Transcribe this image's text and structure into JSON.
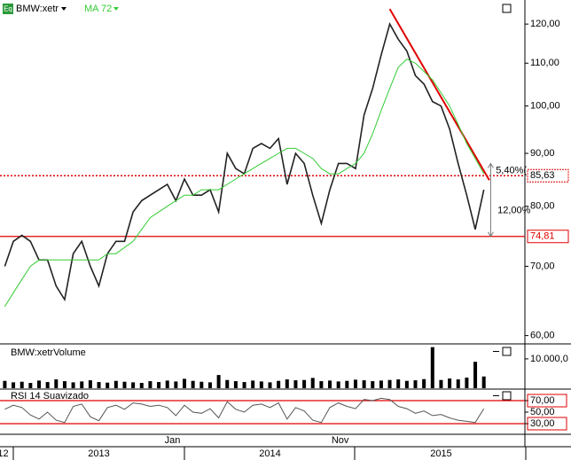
{
  "chart_data": [
    {
      "type": "line",
      "log_scale": true,
      "icon_label": "Eq",
      "x": [
        2012.95,
        2013.0,
        2013.05,
        2013.1,
        2013.15,
        2013.2,
        2013.25,
        2013.3,
        2013.35,
        2013.4,
        2013.45,
        2013.5,
        2013.55,
        2013.6,
        2013.65,
        2013.7,
        2013.75,
        2013.8,
        2013.85,
        2013.9,
        2013.95,
        2014.0,
        2014.05,
        2014.1,
        2014.15,
        2014.2,
        2014.25,
        2014.3,
        2014.35,
        2014.4,
        2014.45,
        2014.5,
        2014.55,
        2014.6,
        2014.65,
        2014.7,
        2014.75,
        2014.8,
        2014.85,
        2014.9,
        2014.95,
        2015.0,
        2015.05,
        2015.1,
        2015.15,
        2015.2,
        2015.25,
        2015.3,
        2015.35,
        2015.4,
        2015.45,
        2015.5,
        2015.55,
        2015.6,
        2015.65,
        2015.7,
        2015.75
      ],
      "xlim": [
        2012.922,
        2015.99
      ],
      "ylim": [
        58.9,
        126.6
      ],
      "yticks": [
        {
          "value": 60,
          "label": "60,00"
        },
        {
          "value": 70,
          "label": "70,00"
        },
        {
          "value": 80,
          "label": "80,00"
        },
        {
          "value": 90,
          "label": "90,00"
        },
        {
          "value": 100,
          "label": "100,00"
        },
        {
          "value": 110,
          "label": "110,00"
        },
        {
          "value": 120,
          "label": "120,00"
        }
      ],
      "series": [
        {
          "name": "BMW:xetr",
          "color": "#222222",
          "values": [
            70,
            74,
            75,
            74,
            71,
            71,
            67,
            65,
            72,
            74,
            70,
            67,
            72,
            74,
            74,
            79,
            81,
            82,
            83,
            84,
            81,
            85,
            82,
            82,
            83,
            79,
            90,
            87,
            86,
            91,
            92,
            91,
            93,
            84,
            90,
            88,
            82,
            77,
            83,
            88,
            88,
            87,
            98,
            104,
            112,
            120,
            116,
            113,
            107,
            105,
            101,
            100,
            95,
            88,
            82,
            76,
            83
          ]
        },
        {
          "name": "MA 72",
          "color": "#33cc33",
          "values": [
            64,
            66,
            68,
            70,
            71,
            71,
            71,
            71,
            71,
            71,
            71,
            71,
            72,
            72,
            73,
            74,
            76,
            78,
            79,
            80,
            81,
            82,
            82,
            83,
            83,
            83,
            84,
            85,
            86,
            87,
            88,
            89,
            90,
            91,
            91,
            90,
            89,
            87,
            86,
            86,
            87,
            88,
            90,
            94,
            99,
            104,
            109,
            111,
            110,
            108,
            106,
            103,
            100,
            96,
            92,
            89,
            86
          ]
        }
      ],
      "levels": [
        {
          "value": 74.81,
          "label": "74,81",
          "style": "solid",
          "color": "#e00000"
        },
        {
          "value": 85.63,
          "label": "85,63",
          "style": "dotted",
          "color": "#e00000"
        }
      ],
      "trendline": {
        "x": [
          2015.2,
          2015.782
        ],
        "y": [
          124.1,
          84.8
        ],
        "color": "#e00000"
      },
      "arrow": {
        "x": 2015.79,
        "y": [
          88,
          74.81
        ]
      },
      "annotations": [
        {
          "text": "5,40%(",
          "x": 2015.82,
          "y": 86.6
        },
        {
          "text": "12,00%",
          "x": 2015.83,
          "y": 79.2
        }
      ]
    },
    {
      "type": "bar",
      "title": "BMW:xetrVolume",
      "color": "#000000",
      "x": [
        2012.95,
        2013.0,
        2013.05,
        2013.1,
        2013.15,
        2013.2,
        2013.25,
        2013.3,
        2013.35,
        2013.4,
        2013.45,
        2013.5,
        2013.55,
        2013.6,
        2013.65,
        2013.7,
        2013.75,
        2013.8,
        2013.85,
        2013.9,
        2013.95,
        2014.0,
        2014.05,
        2014.1,
        2014.15,
        2014.2,
        2014.25,
        2014.3,
        2014.35,
        2014.4,
        2014.45,
        2014.5,
        2014.55,
        2014.6,
        2014.65,
        2014.7,
        2014.75,
        2014.8,
        2014.85,
        2014.9,
        2014.95,
        2015.0,
        2015.05,
        2015.1,
        2015.15,
        2015.2,
        2015.25,
        2015.3,
        2015.35,
        2015.4,
        2015.45,
        2015.5,
        2015.55,
        2015.6,
        2015.65,
        2015.7,
        2015.75
      ],
      "xlim": [
        2012.922,
        2015.99
      ],
      "ylim": [
        0,
        14500
      ],
      "yticks": [
        {
          "value": 10000,
          "label": "10.000,0"
        }
      ],
      "values": [
        2500,
        2000,
        2200,
        1800,
        2600,
        2100,
        3000,
        2400,
        2000,
        2300,
        2700,
        2100,
        1900,
        2500,
        2200,
        2000,
        1800,
        2400,
        2100,
        2600,
        2300,
        3200,
        2500,
        2200,
        2000,
        4500,
        2800,
        2400,
        2100,
        2600,
        2300,
        2000,
        2500,
        3000,
        2700,
        2800,
        3500,
        2400,
        2600,
        2300,
        2500,
        2900,
        2700,
        2400,
        2600,
        2800,
        3000,
        2500,
        2700,
        3100,
        14000,
        2800,
        3300,
        3000,
        3600,
        9000,
        4000
      ]
    },
    {
      "type": "line",
      "title": "RSI 14 Suavizado",
      "x": [
        2012.95,
        2013.0,
        2013.05,
        2013.1,
        2013.15,
        2013.2,
        2013.25,
        2013.3,
        2013.35,
        2013.4,
        2013.45,
        2013.5,
        2013.55,
        2013.6,
        2013.65,
        2013.7,
        2013.75,
        2013.8,
        2013.85,
        2013.9,
        2013.95,
        2014.0,
        2014.05,
        2014.1,
        2014.15,
        2014.2,
        2014.25,
        2014.3,
        2014.35,
        2014.4,
        2014.45,
        2014.5,
        2014.55,
        2014.6,
        2014.65,
        2014.7,
        2014.75,
        2014.8,
        2014.85,
        2014.9,
        2014.95,
        2015.0,
        2015.05,
        2015.1,
        2015.15,
        2015.2,
        2015.25,
        2015.3,
        2015.35,
        2015.4,
        2015.45,
        2015.5,
        2015.55,
        2015.6,
        2015.65,
        2015.7,
        2015.75
      ],
      "xlim": [
        2012.922,
        2015.99
      ],
      "ylim": [
        11.5,
        88.5
      ],
      "yticks": [
        {
          "value": 30,
          "label": "30,00"
        },
        {
          "value": 50,
          "label": "50,00"
        },
        {
          "value": 70,
          "label": "70,00"
        }
      ],
      "levels": [
        70,
        30
      ],
      "series": [
        {
          "name": "RSI 14",
          "color": "#555555",
          "values": [
            55,
            62,
            58,
            45,
            38,
            50,
            36,
            32,
            60,
            64,
            42,
            35,
            58,
            62,
            55,
            66,
            64,
            60,
            62,
            58,
            44,
            62,
            50,
            48,
            56,
            40,
            68,
            55,
            50,
            62,
            64,
            58,
            66,
            38,
            58,
            52,
            36,
            32,
            58,
            66,
            60,
            56,
            72,
            70,
            74,
            72,
            60,
            56,
            48,
            52,
            44,
            46,
            40,
            36,
            34,
            32,
            56
          ]
        }
      ],
      "xticks": [
        {
          "value": 2013.93,
          "label": "Jan"
        },
        {
          "value": 2014.91,
          "label": "Nov"
        }
      ],
      "year_labels": [
        {
          "value": 2012.94,
          "label": "12"
        },
        {
          "value": 2013.5,
          "label": "2013"
        },
        {
          "value": 2014.5,
          "label": "2014"
        },
        {
          "value": 2015.5,
          "label": "2015"
        }
      ]
    }
  ]
}
